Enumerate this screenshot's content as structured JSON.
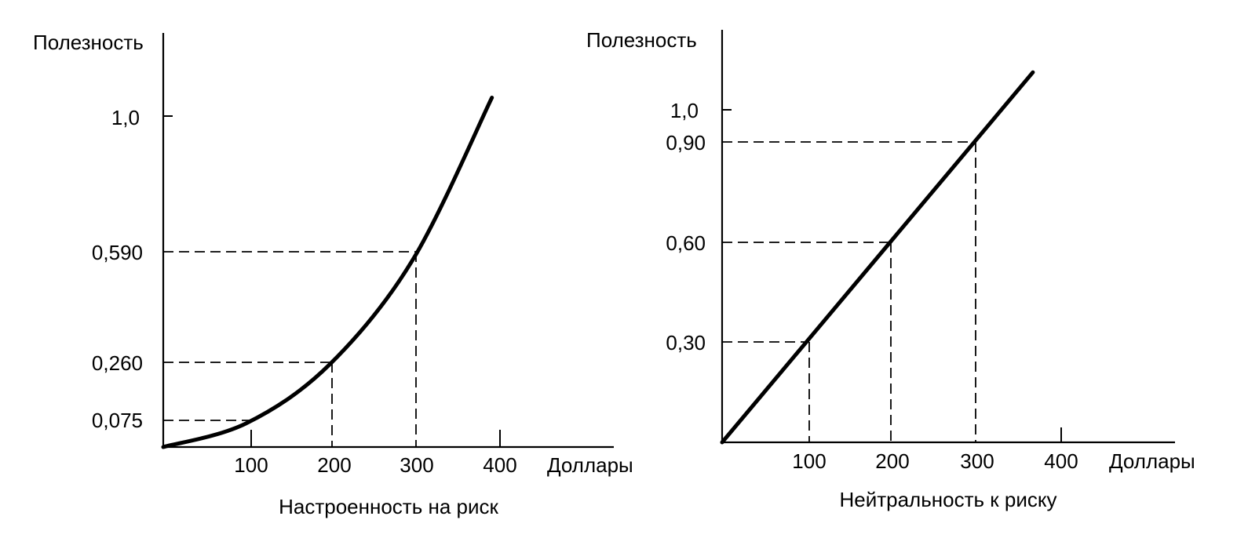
{
  "chart_data": [
    {
      "type": "line",
      "title": "Настроенность на риск",
      "ylabel": "Полезность",
      "xlabel": "Доллары",
      "x_ticks": [
        "100",
        "200",
        "300",
        "400"
      ],
      "y_ticks": [
        "0,075",
        "0,260",
        "0,590",
        "1,0"
      ],
      "guide_points": [
        {
          "x": 100,
          "y": 0.075
        },
        {
          "x": 200,
          "y": 0.26
        },
        {
          "x": 300,
          "y": 0.59
        }
      ],
      "series": [
        {
          "values": [
            {
              "x": 0,
              "y": 0.0
            },
            {
              "x": 100,
              "y": 0.075
            },
            {
              "x": 200,
              "y": 0.26
            },
            {
              "x": 300,
              "y": 0.59
            },
            {
              "x": 395,
              "y": 1.1
            }
          ]
        }
      ],
      "xlim": [
        0,
        560
      ],
      "ylim": [
        0,
        1.25
      ],
      "grid": false
    },
    {
      "type": "line",
      "title": "Нейтральность к риску",
      "ylabel": "Полезность",
      "xlabel": "Доллары",
      "x_ticks": [
        "100",
        "200",
        "300",
        "400"
      ],
      "y_ticks": [
        "0,30",
        "0,60",
        "0,90",
        "1,0"
      ],
      "guide_points": [
        {
          "x": 100,
          "y": 0.3
        },
        {
          "x": 200,
          "y": 0.6
        },
        {
          "x": 300,
          "y": 0.9
        }
      ],
      "series": [
        {
          "values": [
            {
              "x": 0,
              "y": 0.0
            },
            {
              "x": 370,
              "y": 1.11
            }
          ]
        }
      ],
      "xlim": [
        0,
        560
      ],
      "ylim": [
        0,
        1.25
      ],
      "grid": false
    }
  ]
}
